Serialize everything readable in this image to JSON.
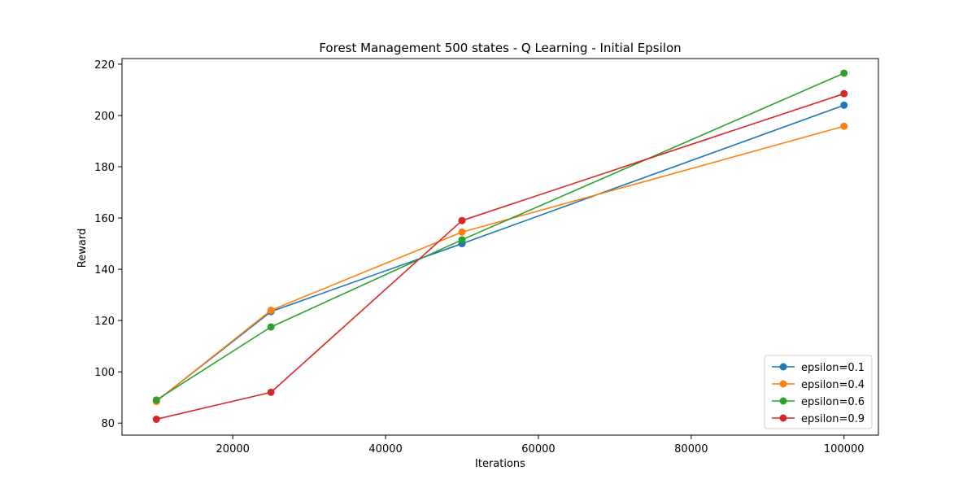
{
  "chart_data": {
    "type": "line",
    "title": "Forest Management 500 states - Q Learning - Initial Epsilon",
    "xlabel": "Iterations",
    "ylabel": "Reward",
    "x": [
      10000,
      25000,
      50000,
      100000
    ],
    "xticks": [
      20000,
      40000,
      60000,
      80000,
      100000
    ],
    "yticks": [
      80,
      100,
      120,
      140,
      160,
      180,
      200,
      220
    ],
    "xlim": [
      5500,
      104500
    ],
    "ylim": [
      75.3,
      222.2
    ],
    "grid": false,
    "legend_position": "lower right",
    "series": [
      {
        "name": "epsilon=0.1",
        "color": "#1f77b4",
        "values": [
          88.5,
          123.5,
          150.0,
          204.0
        ]
      },
      {
        "name": "epsilon=0.4",
        "color": "#ff7f0e",
        "values": [
          88.5,
          124.0,
          154.5,
          195.8
        ]
      },
      {
        "name": "epsilon=0.6",
        "color": "#2ca02c",
        "values": [
          89.0,
          117.5,
          151.5,
          216.5
        ]
      },
      {
        "name": "epsilon=0.9",
        "color": "#d62728",
        "values": [
          81.5,
          92.0,
          159.0,
          208.5
        ]
      }
    ]
  }
}
